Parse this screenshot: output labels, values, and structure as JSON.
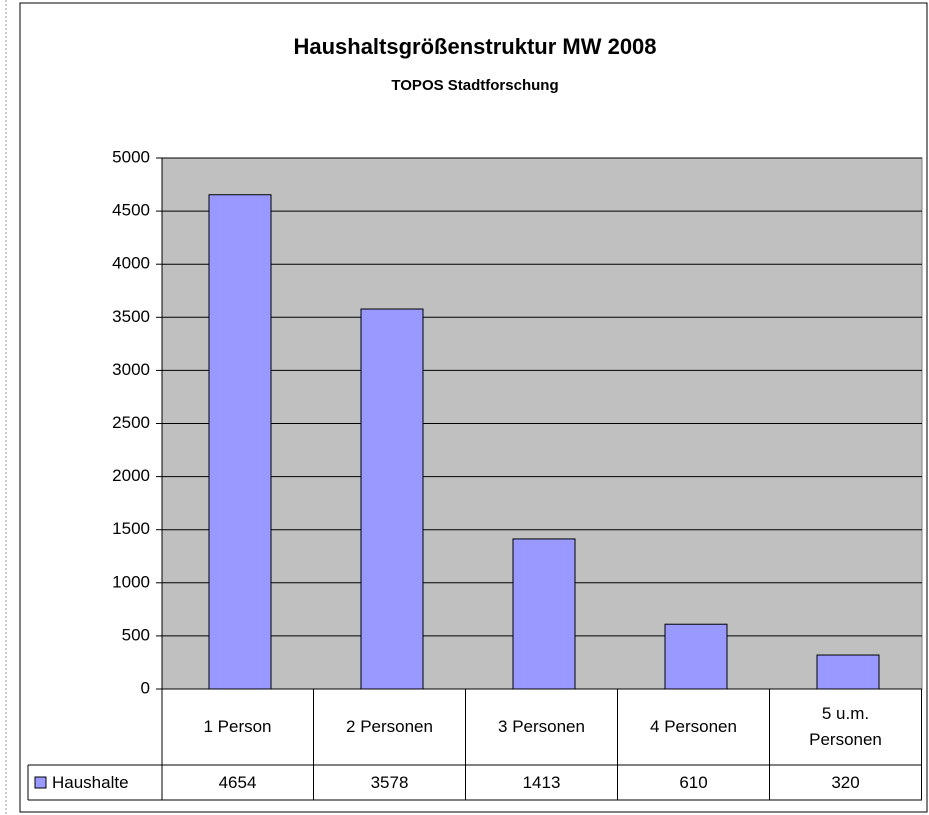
{
  "chart_data": {
    "type": "bar",
    "title": "Haushaltsgrößenstruktur MW 2008",
    "subtitle": "TOPOS Stadtforschung",
    "categories": [
      "1 Person",
      "2 Personen",
      "3 Personen",
      "4 Personen",
      "5 u.m. Personen"
    ],
    "series": [
      {
        "name": "Haushalte",
        "color": "#9999ff",
        "values": [
          4654,
          3578,
          1413,
          610,
          320
        ]
      }
    ],
    "ylim": [
      0,
      5000
    ],
    "yticks": [
      0,
      500,
      1000,
      1500,
      2000,
      2500,
      3000,
      3500,
      4000,
      4500,
      5000
    ],
    "grid": true,
    "data_table": true
  }
}
